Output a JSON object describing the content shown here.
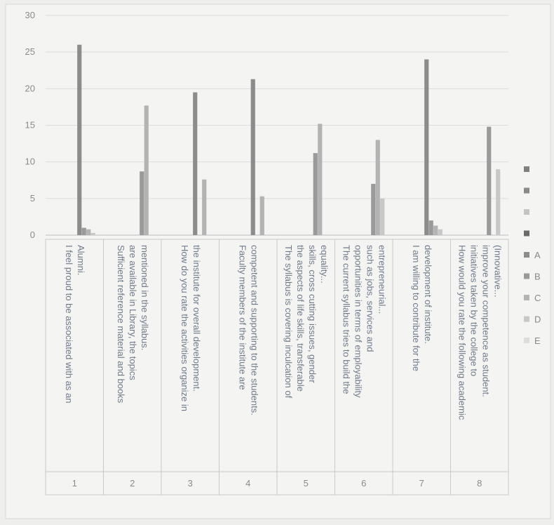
{
  "chart_data": {
    "type": "bar",
    "ylim": [
      0,
      30
    ],
    "yticks": [
      0,
      5,
      10,
      15,
      20,
      25,
      30
    ],
    "grid": true,
    "legend_position": "right",
    "categories": [
      {
        "number": "1",
        "label": "I feel proud to be associated with as an Alumni."
      },
      {
        "number": "2",
        "label": "Sufficient reference material and books are available in Library, the topics mentioned in the syllabus."
      },
      {
        "number": "3",
        "label": "How do you rate the activities organize in the institute for overall development."
      },
      {
        "number": "4",
        "label": "Faculty members of the institute are competent and supporting to the students."
      },
      {
        "number": "5",
        "label": "The syllabus is covering inculcation of the aspects of life skills, transferable skills, cross cutting issues, gender equality..."
      },
      {
        "number": "6",
        "label": "The current syllabus tries to build the opportunities in terms of employability such as jobs, services and entrepreneurial..."
      },
      {
        "number": "7",
        "label": "I am willing to contribute for the development of institute."
      },
      {
        "number": "8",
        "label": "How would you rate the following academic initiatives taken by the college to improve your competence as student. (Innovative..."
      }
    ],
    "series": [
      {
        "name": "",
        "color": "#7f7f7f",
        "values": [
          0,
          0,
          0,
          0,
          0,
          0,
          0,
          0
        ]
      },
      {
        "name": "",
        "color": "#8a8a8a",
        "values": [
          0,
          0,
          0,
          0,
          0,
          0,
          0,
          0
        ]
      },
      {
        "name": "",
        "color": "#c4c4c4",
        "values": [
          0,
          0,
          0,
          0,
          0,
          0,
          0,
          0
        ]
      },
      {
        "name": "",
        "color": "#6a6a6a",
        "values": [
          0,
          0,
          0,
          0,
          0,
          0,
          0,
          0
        ]
      },
      {
        "name": "A",
        "color": "#8c8c8c",
        "values": [
          26,
          0,
          19.5,
          21.3,
          0,
          0,
          24,
          0
        ]
      },
      {
        "name": "B",
        "color": "#9a9a9a",
        "values": [
          1,
          8.7,
          0,
          0,
          11.2,
          7,
          2,
          14.8
        ]
      },
      {
        "name": "C",
        "color": "#b3b3b3",
        "values": [
          0.8,
          17.7,
          7.6,
          5.3,
          15.2,
          13,
          1.3,
          0
        ]
      },
      {
        "name": "D",
        "color": "#c8c8c8",
        "values": [
          0.3,
          0,
          0,
          0,
          0,
          5,
          0.8,
          9
        ]
      },
      {
        "name": "E",
        "color": "#dcdcdc",
        "values": [
          0,
          0,
          0,
          0,
          0,
          0,
          0,
          0
        ]
      }
    ]
  }
}
